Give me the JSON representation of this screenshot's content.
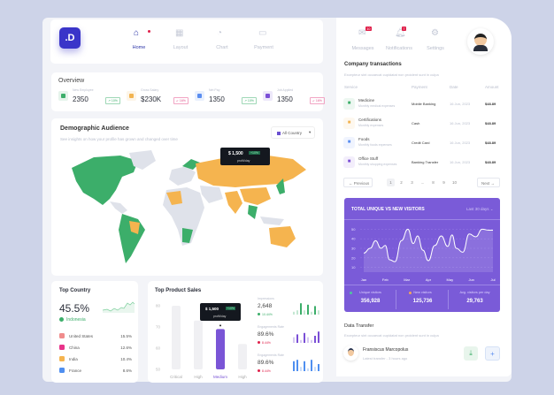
{
  "brand": {
    "logo": ".D",
    "color": "#3a35c9"
  },
  "nav": [
    {
      "label": "Home",
      "icon": "home-icon",
      "active": true
    },
    {
      "label": "Layout",
      "icon": "grid-icon"
    },
    {
      "label": "Chart",
      "icon": "pie-chart-icon"
    },
    {
      "label": "Payment",
      "icon": "wallet-icon"
    }
  ],
  "overview": {
    "title": "Overview",
    "stats": [
      {
        "label": "New Employee",
        "value": "2350",
        "change": "↗ 10%",
        "trend": "up",
        "color": "#3cae6a"
      },
      {
        "label": "Gross Salary",
        "value": "$230K",
        "change": "↙ 16%",
        "trend": "down",
        "color": "#f2b452"
      },
      {
        "label": "Net Pay",
        "value": "1350",
        "change": "↗ 10%",
        "trend": "up",
        "color": "#5b8ef0"
      },
      {
        "label": "Job Applied",
        "value": "1350",
        "change": "↙ 16%",
        "trend": "down",
        "color": "#7b4fd6"
      }
    ]
  },
  "demographic": {
    "title": "Demographic Audience",
    "subtitle": "See insights on how your profile has grown and changed over time",
    "filter": "All Country",
    "tooltip": {
      "value": "$ 1,500",
      "badge": "+10%",
      "unit": "profit/day"
    }
  },
  "top_country": {
    "title": "Top Country",
    "value": "45.5%",
    "country": "Indonesia",
    "items": [
      {
        "name": "United States",
        "value": "15.5%",
        "color": "#f08c8c"
      },
      {
        "name": "China",
        "value": "12.6%",
        "color": "#e8338a"
      },
      {
        "name": "India",
        "value": "10.4%",
        "color": "#f5b44f"
      },
      {
        "name": "France",
        "value": "8.6%",
        "color": "#4f8ff0"
      }
    ]
  },
  "top_product": {
    "title": "Top Product Sales",
    "tooltip": {
      "value": "$ 1,500",
      "badge": "+10%",
      "unit": "profit/day"
    },
    "chart_data": {
      "type": "bar",
      "categories": [
        "Critical",
        "High",
        "Medium",
        "High"
      ],
      "values": [
        80,
        73,
        69,
        62
      ],
      "ylim": [
        50,
        80
      ],
      "yticks": [
        50,
        60,
        70,
        80
      ],
      "highlight": 2
    },
    "metrics": [
      {
        "label": "Impressions",
        "value": "2,648",
        "change": "10.44%",
        "trend": "up",
        "color": "#3cae6a",
        "bars": [
          2,
          3,
          8,
          3,
          7,
          2,
          6,
          3
        ]
      },
      {
        "label": "Engagements Rate",
        "value": "89.6%",
        "change": "8.44%",
        "trend": "down",
        "color": "#7b4fd6",
        "bars": [
          4,
          6,
          2,
          7,
          4,
          2,
          5,
          8
        ]
      },
      {
        "label": "Engagements Rate",
        "value": "89.6%",
        "change": "8.44%",
        "trend": "down",
        "color": "#4f8ff0",
        "bars": [
          7,
          8,
          3,
          7,
          2,
          8,
          3,
          5
        ]
      }
    ]
  },
  "top_nav": [
    {
      "label": "Messages",
      "icon": "mail-icon",
      "badge": "10"
    },
    {
      "label": "Notifications",
      "icon": "bell-icon",
      "badge": "7"
    },
    {
      "label": "Settings",
      "icon": "gear-icon"
    }
  ],
  "transactions": {
    "title": "Company transactions",
    "subtitle": "Excepteur sint occaecat cupidatat non proident sunt in culpa",
    "headers": [
      "Service",
      "Payment",
      "Date",
      "Amount"
    ],
    "rows": [
      {
        "name": "Medicine",
        "desc": "Monthly medical expenses",
        "payment": "Mobile Banking",
        "date": "16 Jun, 2023",
        "amount": "$48.89",
        "color": "#3cae6a",
        "icon": "medical-bag-icon"
      },
      {
        "name": "Certifications",
        "desc": "Monthly expenses",
        "payment": "Cash",
        "date": "16 Jun, 2023",
        "amount": "$48.89",
        "color": "#f2b452",
        "icon": "certificate-icon"
      },
      {
        "name": "Foods",
        "desc": "Monthly foods expenses",
        "payment": "Credit Card",
        "date": "16 Jun, 2023",
        "amount": "$48.89",
        "color": "#5b8ef0",
        "icon": "cutlery-icon"
      },
      {
        "name": "Office Stuff",
        "desc": "Monthly shopping expenses",
        "payment": "Banking Transfer",
        "date": "16 Jun, 2023",
        "amount": "$48.89",
        "color": "#7b4fd6",
        "icon": "cart-icon"
      }
    ],
    "pagination": {
      "prev": "← Previous",
      "next": "Next →",
      "pages": [
        "1",
        "2",
        "3",
        "...",
        "8",
        "9",
        "10"
      ],
      "current": "1"
    }
  },
  "visitors": {
    "title": "TOTAL UNIQUE VS NEW VISITORS",
    "range": "Last 30 days ⌄",
    "chart_data": {
      "type": "area",
      "categories": [
        "Jan",
        "Feb",
        "Mar",
        "Apr",
        "May",
        "Jun",
        "Jul"
      ],
      "yticks": [
        10,
        20,
        30,
        40,
        50
      ],
      "ylim": [
        5,
        55
      ],
      "x": [
        0,
        0.3,
        0.55,
        0.8,
        1.0,
        1.2,
        1.45,
        1.75,
        2.05,
        2.3,
        2.5,
        2.75,
        3.0,
        3.3,
        3.6,
        3.9,
        4.1,
        4.3,
        4.6,
        4.9,
        5.2,
        5.5,
        5.8,
        6.0
      ],
      "values": [
        25,
        30,
        38,
        30,
        33,
        18,
        16,
        38,
        50,
        35,
        43,
        28,
        17,
        33,
        43,
        32,
        44,
        30,
        26,
        45,
        42,
        50,
        49,
        49
      ]
    },
    "stats": [
      {
        "label": "Unique visitors",
        "value": "356,928",
        "color": "#4fc6a0"
      },
      {
        "label": "New visitors",
        "value": "125,736",
        "color": "#f2a65a"
      },
      {
        "label": "Avg. visitors per day",
        "value": "29,763"
      }
    ]
  },
  "transfer": {
    "title": "Data Transfer",
    "subtitle": "Excepteur sint occaecat cupidatat non proident sunt in culpa",
    "name": "Fransiscus Marcopolus",
    "meta": "Latest transfer - 3 hours ago"
  }
}
